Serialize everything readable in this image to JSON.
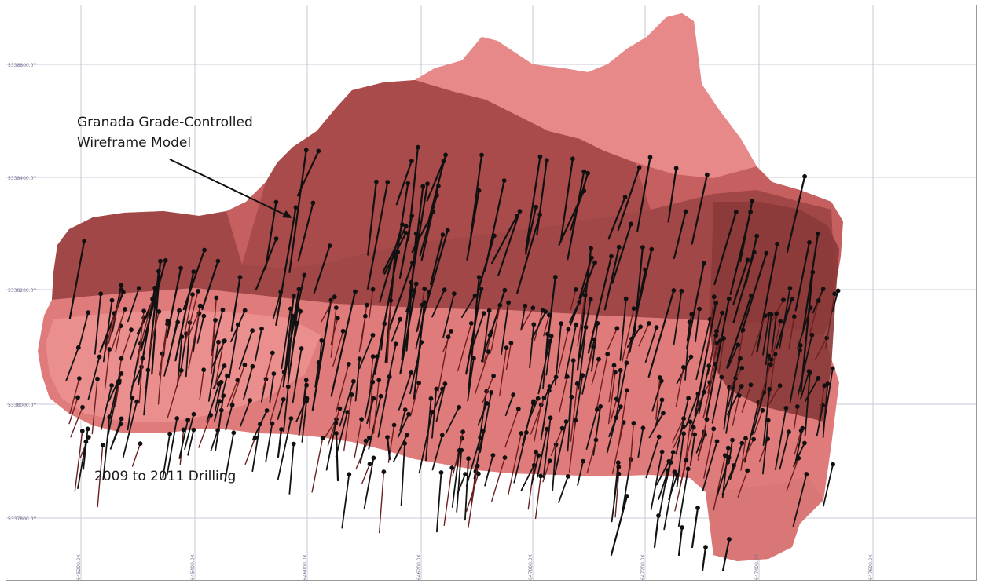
{
  "annotations": {
    "model_line1": "Granada Grade-Controlled",
    "model_line2": "Wireframe Model",
    "drilling": "2009 to 2011 Drilling"
  },
  "grid": {
    "northing_labels": [
      "5338800.0Y",
      "5338400.0Y",
      "5338200.0Y",
      "5338000.0Y",
      "5337800.0Y"
    ],
    "easting_labels": [
      "645200.0X",
      "645400.0X",
      "646000.0X",
      "646200.0X",
      "647000.0X",
      "647200.0X",
      "647400.0X",
      "647600.0X"
    ]
  },
  "colors": {
    "wireframe_light": "#e58585",
    "wireframe_mid": "#c86464",
    "wireframe_dark": "#9c4444",
    "wireframe_shadow": "#7a3232",
    "drillhole": "#111111",
    "gridline": "#c9c9d6"
  }
}
